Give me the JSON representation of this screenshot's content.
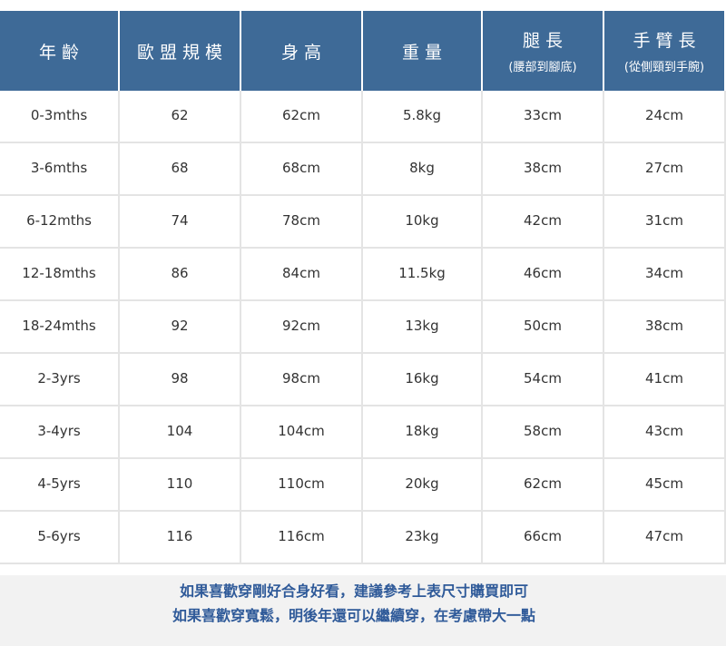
{
  "table": {
    "header": [
      {
        "label": "年齡"
      },
      {
        "label": "歐盟規模"
      },
      {
        "label": "身高"
      },
      {
        "label": "重量"
      },
      {
        "label": "腿長",
        "sub": "(腰部到腳底)"
      },
      {
        "label": "手臂長",
        "sub": "(從側頸到手腕)"
      }
    ],
    "rows": [
      [
        "0-3mths",
        "62",
        "62cm",
        "5.8kg",
        "33cm",
        "24cm"
      ],
      [
        "3-6mths",
        "68",
        "68cm",
        "8kg",
        "38cm",
        "27cm"
      ],
      [
        "6-12mths",
        "74",
        "78cm",
        "10kg",
        "42cm",
        "31cm"
      ],
      [
        "12-18mths",
        "86",
        "84cm",
        "11.5kg",
        "46cm",
        "34cm"
      ],
      [
        "18-24mths",
        "92",
        "92cm",
        "13kg",
        "50cm",
        "38cm"
      ],
      [
        "2-3yrs",
        "98",
        "98cm",
        "16kg",
        "54cm",
        "41cm"
      ],
      [
        "3-4yrs",
        "104",
        "104cm",
        "18kg",
        "58cm",
        "43cm"
      ],
      [
        "4-5yrs",
        "110",
        "110cm",
        "20kg",
        "62cm",
        "45cm"
      ],
      [
        "5-6yrs",
        "116",
        "116cm",
        "23kg",
        "66cm",
        "47cm"
      ]
    ]
  },
  "footer": {
    "lines": [
      "如果喜歡穿剛好合身好看，建議參考上表尺寸購買即可",
      "如果喜歡穿寬鬆，明後年還可以繼續穿，在考慮帶大一點"
    ]
  }
}
